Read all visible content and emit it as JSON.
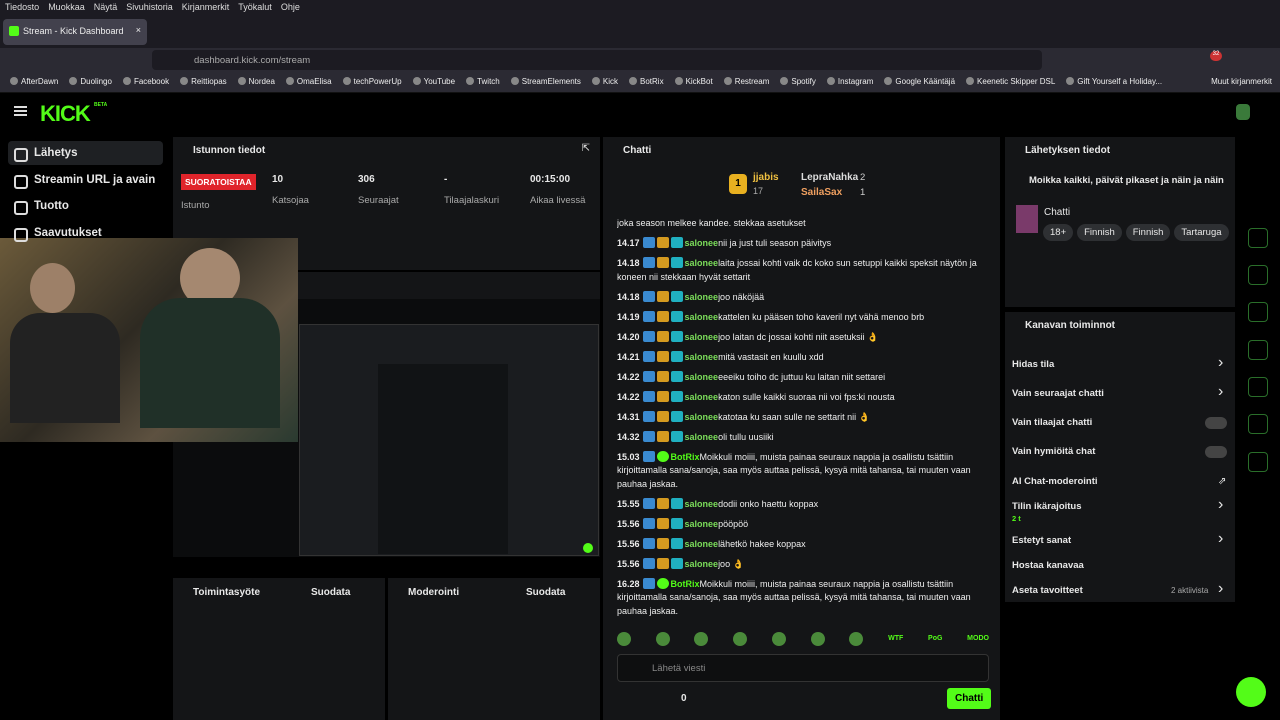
{
  "browser": {
    "menu": [
      "Tiedosto",
      "Muokkaa",
      "Näytä",
      "Sivuhistoria",
      "Kirjanmerkit",
      "Työkalut",
      "Ohje"
    ],
    "tab_title": "Stream - Kick Dashboard",
    "url": "dashboard.kick.com/stream",
    "extension_badge": "32",
    "bookmarks": [
      "AfterDawn",
      "Duolingo",
      "Facebook",
      "Reittiopas",
      "Nordea",
      "OmaElisa",
      "techPowerUp",
      "YouTube",
      "Twitch",
      "StreamElements",
      "Kick",
      "BotRix",
      "KickBot",
      "Restream",
      "Spotify",
      "Instagram",
      "Google Kääntäjä",
      "Keenetic Skipper DSL",
      "Gift Yourself a Holiday..."
    ],
    "other_bookmarks": "Muut kirjanmerkit"
  },
  "header": {
    "logo": "KICK",
    "logo_badge": "BETA"
  },
  "sidebar": {
    "items": [
      "Lähetys",
      "Streamin URL ja avain",
      "Tuotto",
      "Saavutukset"
    ]
  },
  "session": {
    "title": "Istunnon tiedot",
    "status": "SUORATOISTAA",
    "status_label": "Istunto",
    "stats": [
      {
        "value": "10",
        "label": "Katsojaa"
      },
      {
        "value": "306",
        "label": "Seuraajat"
      },
      {
        "value": "-",
        "label": "Tilaajalaskuri"
      },
      {
        "value": "00:15:00",
        "label": "Aikaa livessä"
      }
    ]
  },
  "activity": {
    "title": "Toimintasyöte",
    "filter": "Suodata"
  },
  "moderation": {
    "title": "Moderointi",
    "filter": "Suodata"
  },
  "chat": {
    "title": "Chatti",
    "leaders": [
      {
        "rank": "1",
        "name": "jjabis",
        "count": "17"
      },
      {
        "name": "LepraNahka",
        "count": "2"
      },
      {
        "name": "SailaSax",
        "count": "1"
      }
    ],
    "continuation": "joka season melkee kandee. stekkaa asetukset",
    "messages": [
      {
        "time": "14.17",
        "user": "salonee",
        "text": "nii ja just tuli season päivitys"
      },
      {
        "time": "14.18",
        "user": "salonee",
        "text": "laita jossai kohti vaik dc koko sun setuppi kaikki speksit näytön ja koneen nii stekkaan hyvät settarit"
      },
      {
        "time": "14.18",
        "user": "salonee",
        "text": "joo näköjää"
      },
      {
        "time": "14.19",
        "user": "salonee",
        "text": "kattelen ku pääsen toho kaveril nyt vähä menoo brb"
      },
      {
        "time": "14.20",
        "user": "salonee",
        "text": "joo laitan dc jossai kohti niit asetuksii 👌"
      },
      {
        "time": "14.21",
        "user": "salonee",
        "text": "mitä vastasit en kuullu xdd"
      },
      {
        "time": "14.22",
        "user": "salonee",
        "text": "eeeiku toiho dc juttuu ku laitan niit settarei"
      },
      {
        "time": "14.22",
        "user": "salonee",
        "text": "katon sulle kaikki suoraa nii voi fps:ki nousta"
      },
      {
        "time": "14.31",
        "user": "salonee",
        "text": "katotaa ku saan sulle ne settarit nii 👌"
      },
      {
        "time": "14.32",
        "user": "salonee",
        "text": "oli tullu uusiiki"
      },
      {
        "time": "15.03",
        "user": "BotRix",
        "text": "Moikkuli moiiii, muista painaa seuraux nappia ja osallistu tsättiin kirjoittamalla sana/sanoja, saa myös auttaa pelissä, kysyä mitä tahansa, tai muuten vaan pauhaa jaskaa."
      },
      {
        "time": "15.55",
        "user": "salonee",
        "text": "dodii onko haettu koppax"
      },
      {
        "time": "15.56",
        "user": "salonee",
        "text": "pööpöö"
      },
      {
        "time": "15.56",
        "user": "salonee",
        "text": "lähetkö hakee koppax"
      },
      {
        "time": "15.56",
        "user": "salonee",
        "text": "joo 👌"
      },
      {
        "time": "16.28",
        "user": "BotRix",
        "text": "Moikkuli moiiii, muista painaa seuraux nappia ja osallistu tsättiin kirjoittamalla sana/sanoja, saa myös auttaa pelissä, kysyä mitä tahansa, tai muuten vaan pauhaa jaskaa."
      }
    ],
    "emotes": [
      "WTF",
      "PoG",
      "MODO"
    ],
    "placeholder": "Lähetä viesti",
    "counter": "0",
    "send": "Chatti"
  },
  "stream_info": {
    "title": "Lähetyksen tiedot",
    "stream_title": "Moikka kaikki, päivät pikaset ja näin ja näin",
    "category": "Chatti",
    "tags": [
      "18+",
      "Finnish",
      "Finnish",
      "Tartaruga"
    ]
  },
  "channel_actions": {
    "title": "Kanavan toiminnot",
    "items": [
      {
        "label": "Hidas tila",
        "control": "arrow"
      },
      {
        "label": "Vain seuraajat chatti",
        "control": "arrow"
      },
      {
        "label": "Vain tilaajat chatti",
        "control": "toggle"
      },
      {
        "label": "Vain hymiöitä chat",
        "control": "toggle"
      },
      {
        "label": "AI Chat-moderointi",
        "control": "external"
      },
      {
        "label": "Tilin ikärajoitus",
        "sub": "2 t",
        "control": "arrow"
      },
      {
        "label": "Estetyt sanat",
        "control": "arrow"
      },
      {
        "label": "Hostaa kanavaa",
        "control": "none"
      },
      {
        "label": "Aseta tavoitteet",
        "status": "2 aktiivista",
        "control": "arrow"
      }
    ]
  }
}
